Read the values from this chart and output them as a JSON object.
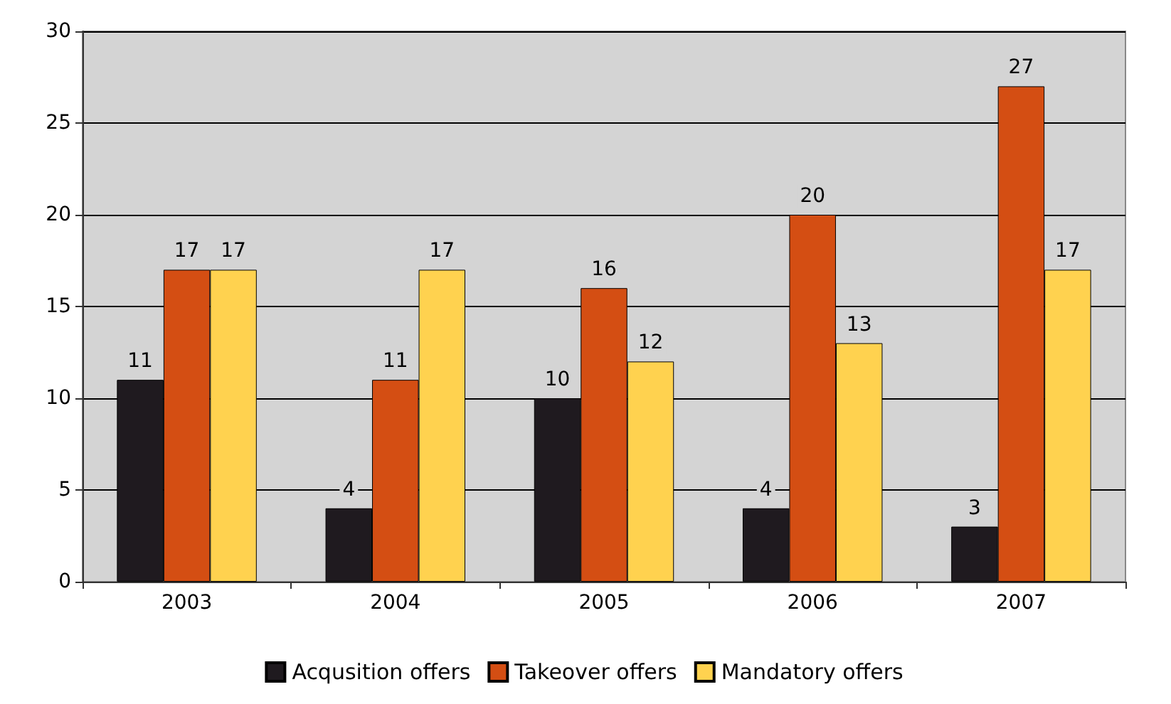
{
  "chart_data": {
    "type": "bar",
    "categories": [
      "2003",
      "2004",
      "2005",
      "2006",
      "2007"
    ],
    "series": [
      {
        "name": "Acqusition offers",
        "color": "#1f1a1f",
        "values": [
          11,
          4,
          10,
          4,
          3
        ]
      },
      {
        "name": "Takeover offers",
        "color": "#d44e13",
        "values": [
          17,
          11,
          16,
          20,
          27
        ]
      },
      {
        "name": "Mandatory offers",
        "color": "#ffd24f",
        "values": [
          17,
          17,
          12,
          13,
          17
        ]
      }
    ],
    "ylim": [
      0,
      30
    ],
    "yticks": [
      0,
      5,
      10,
      15,
      20,
      25,
      30
    ],
    "grid": "y",
    "legend": "bottom",
    "data_labels": true
  }
}
